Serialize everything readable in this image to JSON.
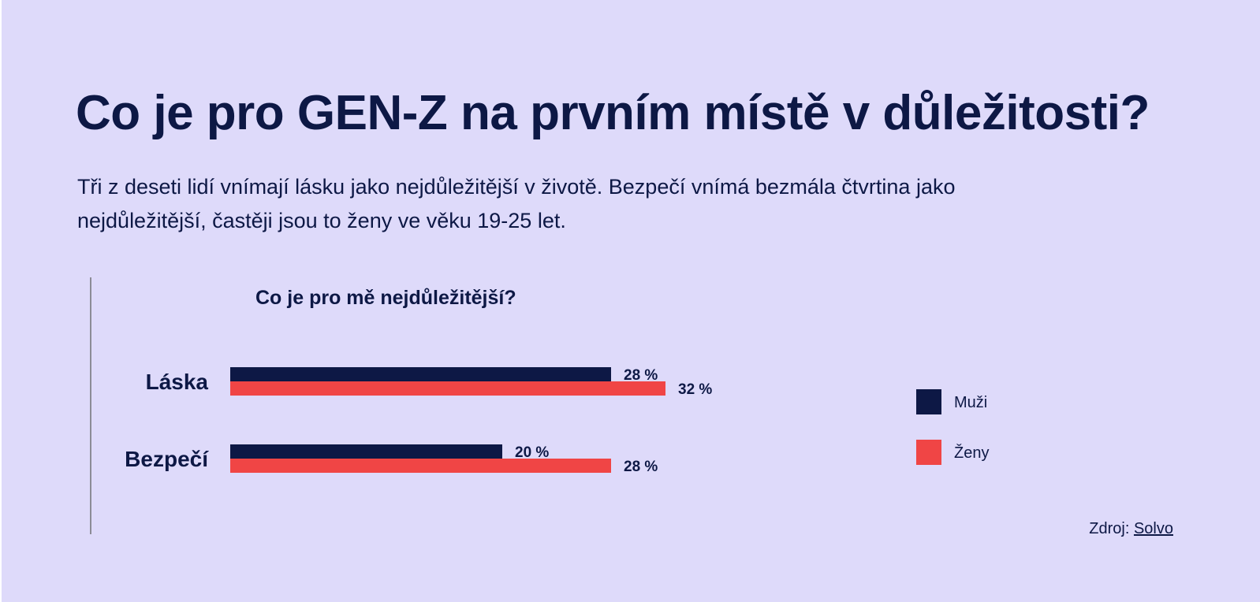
{
  "headline": "Co je pro GEN-Z na prvním místě v důležitosti?",
  "lede": "Tři z deseti lidí vnímají lásku jako nejdůležitější v životě. Bezpečí vnímá bezmála čtvrtina jako nejdůležitější, častěji jsou to ženy ve věku 19-25 let.",
  "source": {
    "label": "Zdroj:",
    "link_text": "Solvo"
  },
  "colors": {
    "background": "#dedafa",
    "text": "#0d1845",
    "muzi": "#0d1845",
    "zeny": "#f04545"
  },
  "chart_data": {
    "type": "bar",
    "orientation": "horizontal",
    "title": "Co je pro mě nejdůležitější?",
    "categories": [
      "Láska",
      "Bezpečí"
    ],
    "series": [
      {
        "name": "Muži",
        "values": [
          28,
          20
        ],
        "labels": [
          "28 %",
          "20 %"
        ],
        "color": "#0d1845"
      },
      {
        "name": "Ženy",
        "values": [
          32,
          28
        ],
        "labels": [
          "32 %",
          "28 %"
        ],
        "color": "#f04545"
      }
    ],
    "xlim": [
      0,
      100
    ],
    "grid": false,
    "legend": "right"
  }
}
